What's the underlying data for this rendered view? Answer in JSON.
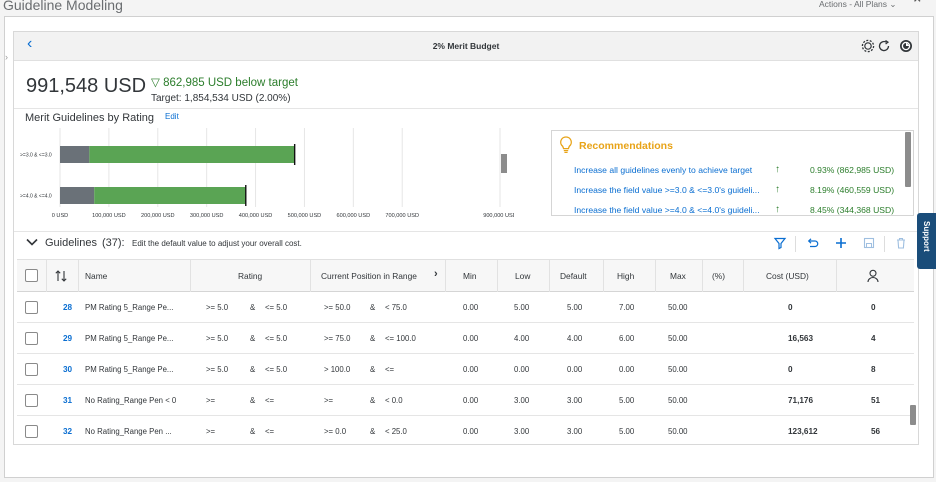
{
  "app": {
    "title": "Guideline Modeling",
    "actions_label": "Actions - All Plans",
    "actions_icon": "chevron-down-icon",
    "close_icon": "close-icon"
  },
  "panel": {
    "title": "2% Merit Budget",
    "icons": [
      "settings-icon",
      "refresh-icon",
      "help-icon"
    ]
  },
  "summary": {
    "total": "991,548 USD",
    "below_target": "862,985 USD below target",
    "target": "Target: 1,854,534 USD (2.00%)"
  },
  "merit": {
    "title": "Merit Guidelines by Rating",
    "edit_label": "Edit"
  },
  "chart_data": {
    "type": "bar",
    "orientation": "horizontal",
    "stacked": true,
    "categories": [
      ">=3.0 & <=3.0",
      ">=4.0 & <=4.0"
    ],
    "series": [
      {
        "color": "#6a7178",
        "values": [
          60000,
          70000
        ]
      },
      {
        "color": "#5aa454",
        "values": [
          420000,
          310000
        ]
      }
    ],
    "markers": [
      480000,
      380000
    ],
    "xticks": [
      "0 USD",
      "100,000 USD",
      "200,000 USD",
      "300,000 USD",
      "400,000 USD",
      "500,000 USD",
      "600,000 USD",
      "700,000 USD",
      "900,000 USD"
    ],
    "tick_values": [
      0,
      100000,
      200000,
      300000,
      400000,
      500000,
      600000,
      700000,
      900000
    ],
    "xlim": [
      0,
      900000
    ],
    "grid": true
  },
  "recommendations": {
    "title": "Recommendations",
    "items": [
      {
        "text": "Increase all guidelines evenly to achieve target",
        "value": "0.93% (862,985 USD)"
      },
      {
        "text": "Increase the field value >=3.0 & <=3.0's guideli...",
        "value": "8.19% (460,559 USD)"
      },
      {
        "text": "Increase the field value >=4.0 & <=4.0's guideli...",
        "value": "8.45% (344,368 USD)"
      }
    ]
  },
  "guidelines": {
    "title": "Guidelines",
    "count": "(37):",
    "hint": "Edit the default value to adjust your overall cost."
  },
  "toolbar": {
    "icons": [
      "filter-icon",
      "undo-icon",
      "add-icon",
      "save-icon",
      "delete-icon"
    ]
  },
  "table": {
    "columns": {
      "name": "Name",
      "rating": "Rating",
      "position": "Current Position in Range",
      "min": "Min",
      "low": "Low",
      "default": "Default",
      "high": "High",
      "max": "Max",
      "pct": "(%)",
      "cost": "Cost (USD)"
    },
    "rows": [
      {
        "id": "28",
        "name": "PM Rating 5_Range Pe...",
        "r1": ">= 5.0",
        "amp1": "&",
        "r2": "<= 5.0",
        "p1": ">= 50.0",
        "amp2": "&",
        "p2": "< 75.0",
        "min": "0.00",
        "low": "5.00",
        "def": "5.00",
        "high": "7.00",
        "max": "50.00",
        "cost": "0",
        "people": "0"
      },
      {
        "id": "29",
        "name": "PM Rating 5_Range Pe...",
        "r1": ">= 5.0",
        "amp1": "&",
        "r2": "<= 5.0",
        "p1": ">= 75.0",
        "amp2": "&",
        "p2": "<= 100.0",
        "min": "0.00",
        "low": "4.00",
        "def": "4.00",
        "high": "6.00",
        "max": "50.00",
        "cost": "16,563",
        "people": "4"
      },
      {
        "id": "30",
        "name": "PM Rating 5_Range Pe...",
        "r1": ">= 5.0",
        "amp1": "&",
        "r2": "<= 5.0",
        "p1": "> 100.0",
        "amp2": "&",
        "p2": "<=",
        "min": "0.00",
        "low": "0.00",
        "def": "0.00",
        "high": "0.00",
        "max": "50.00",
        "cost": "0",
        "people": "8"
      },
      {
        "id": "31",
        "name": "No Rating_Range Pen < 0",
        "r1": ">=",
        "amp1": "&",
        "r2": "<=",
        "p1": ">=",
        "amp2": "&",
        "p2": "< 0.0",
        "min": "0.00",
        "low": "3.00",
        "def": "3.00",
        "high": "5.00",
        "max": "50.00",
        "cost": "71,176",
        "people": "51"
      },
      {
        "id": "32",
        "name": "No Rating_Range Pen ...",
        "r1": ">=",
        "amp1": "&",
        "r2": "<=",
        "p1": ">= 0.0",
        "amp2": "&",
        "p2": "< 25.0",
        "min": "0.00",
        "low": "3.00",
        "def": "3.00",
        "high": "5.00",
        "max": "50.00",
        "cost": "123,612",
        "people": "56"
      }
    ]
  },
  "support_label": "Support"
}
